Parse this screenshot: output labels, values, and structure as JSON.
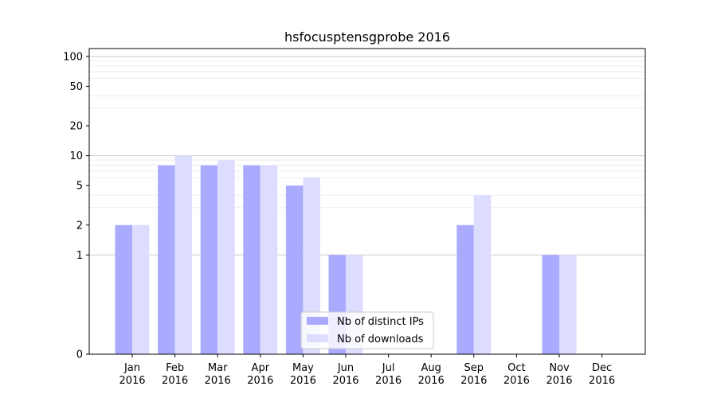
{
  "chart_data": {
    "type": "bar",
    "title": "hsfocusptensgprobe 2016",
    "xlabel": "",
    "ylabel": "",
    "y_scale": "symlog",
    "ylim": [
      0,
      120
    ],
    "y_ticks": [
      0,
      1,
      2,
      5,
      10,
      20,
      50,
      100
    ],
    "y_tick_labels": [
      "0",
      "1",
      "2",
      "5",
      "10",
      "20",
      "50",
      "100"
    ],
    "grid": "horizontal major and minor lines",
    "legend_position": "lower-center",
    "categories": [
      [
        "Jan",
        "2016"
      ],
      [
        "Feb",
        "2016"
      ],
      [
        "Mar",
        "2016"
      ],
      [
        "Apr",
        "2016"
      ],
      [
        "May",
        "2016"
      ],
      [
        "Jun",
        "2016"
      ],
      [
        "Jul",
        "2016"
      ],
      [
        "Aug",
        "2016"
      ],
      [
        "Sep",
        "2016"
      ],
      [
        "Oct",
        "2016"
      ],
      [
        "Nov",
        "2016"
      ],
      [
        "Dec",
        "2016"
      ]
    ],
    "series": [
      {
        "name": "Nb of distinct IPs",
        "color": "#aaaaff",
        "values": [
          2,
          8,
          8,
          8,
          5,
          1,
          0,
          0,
          2,
          0,
          1,
          0
        ]
      },
      {
        "name": "Nb of downloads",
        "color": "#ddddff",
        "values": [
          2,
          10,
          9,
          8,
          6,
          1,
          0,
          0,
          4,
          0,
          1,
          0
        ]
      }
    ]
  }
}
